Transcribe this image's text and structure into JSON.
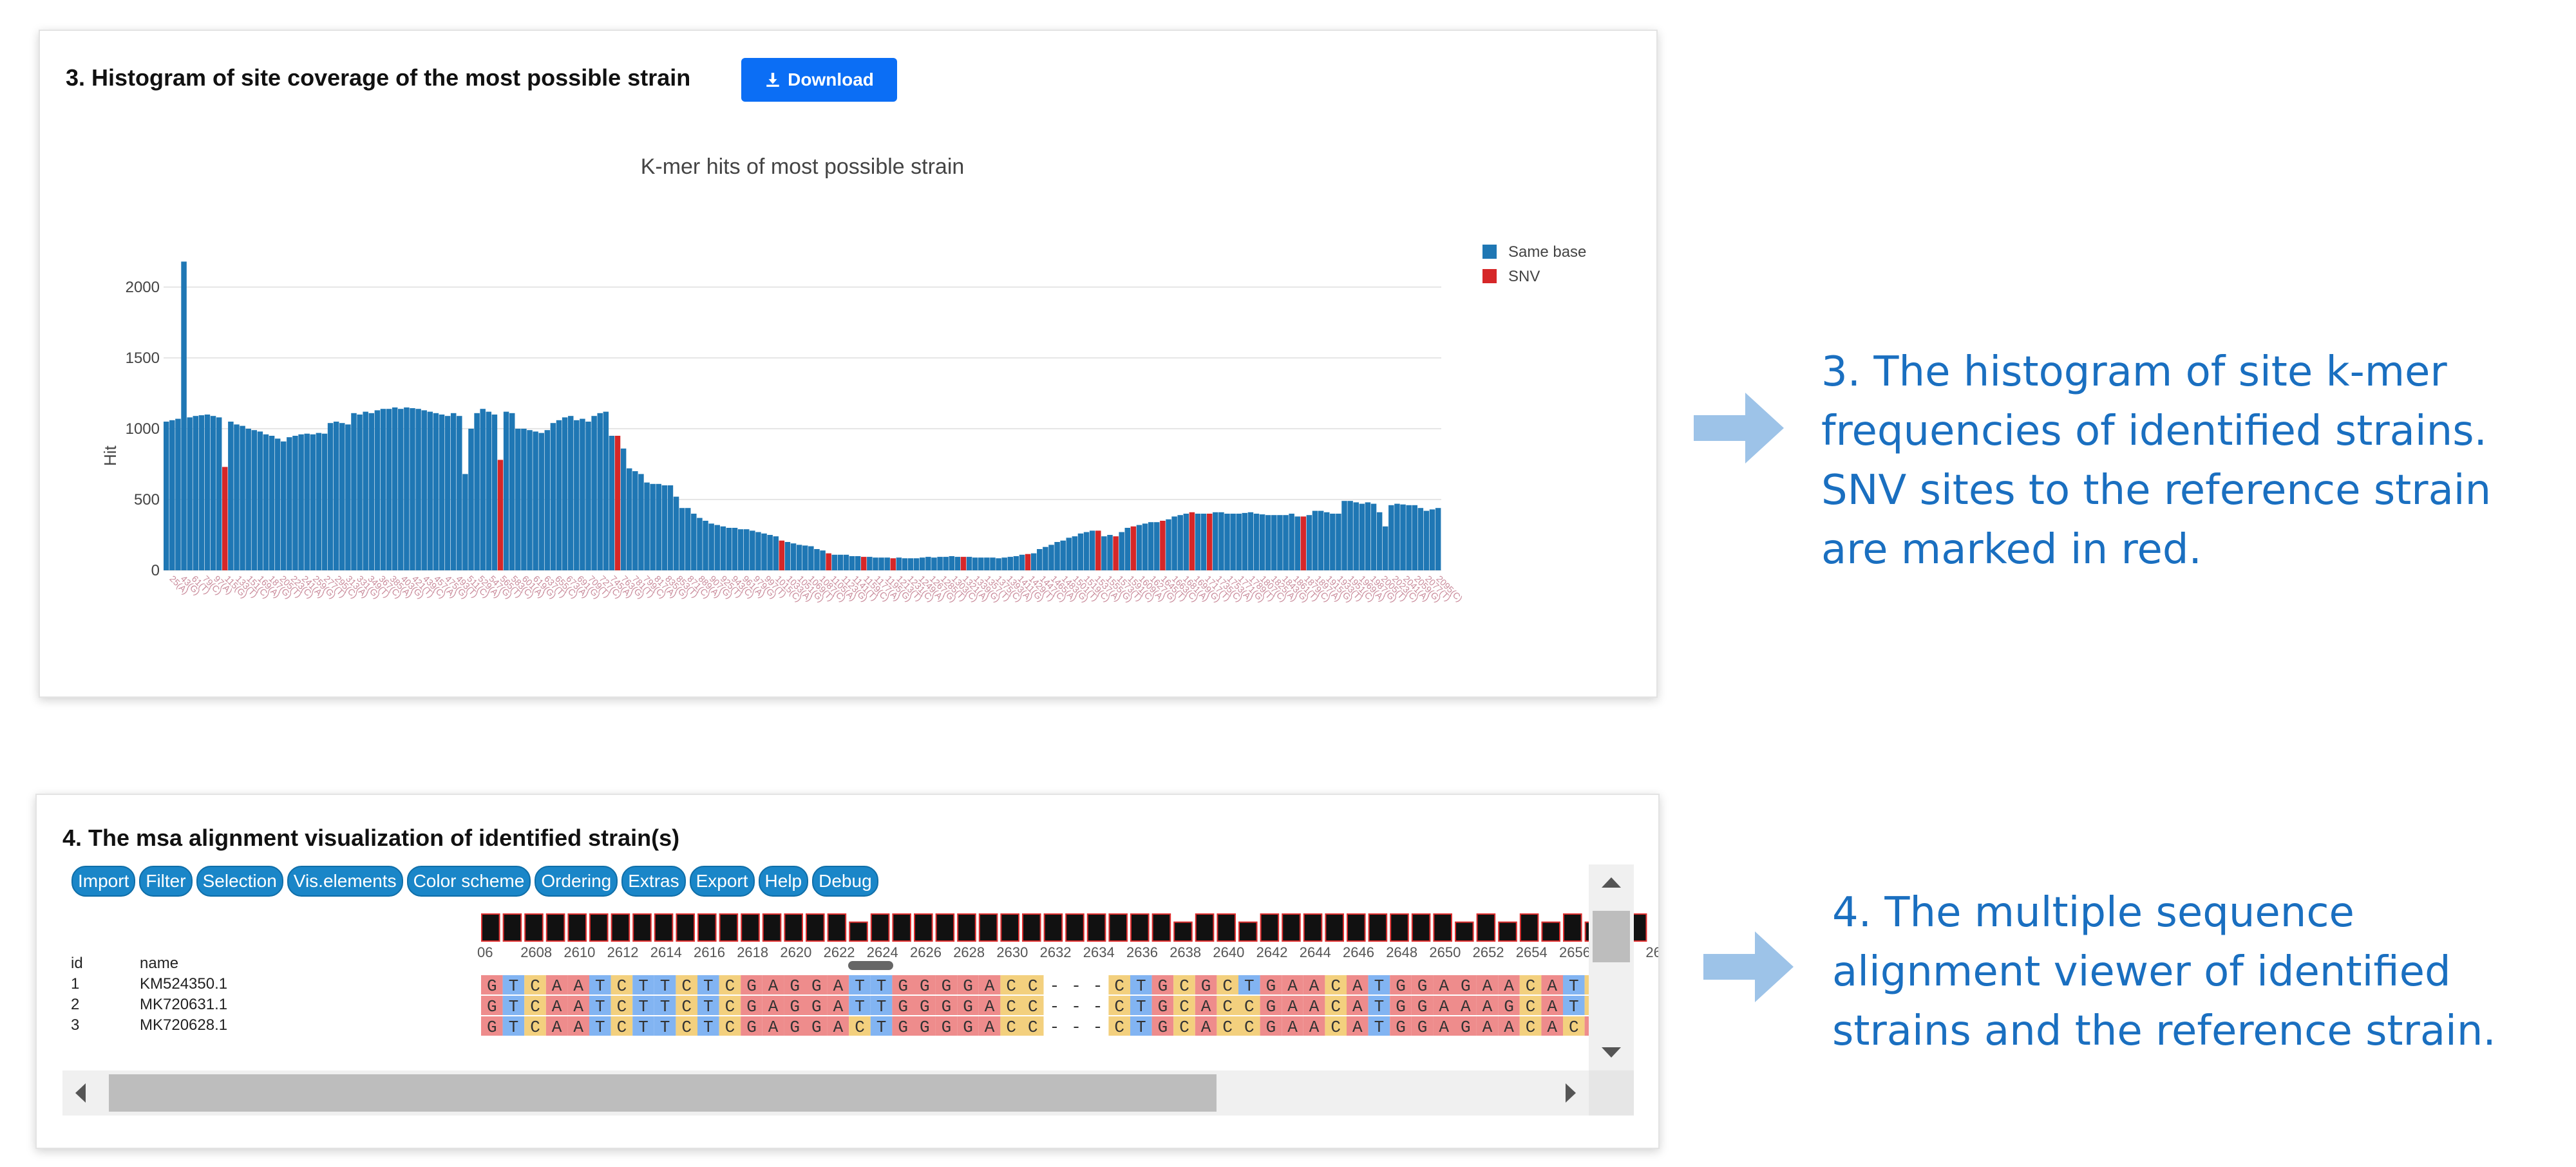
{
  "panel3": {
    "title": "3. Histogram of site coverage of the most possible strain",
    "download_label": "Download"
  },
  "chart_data": {
    "type": "bar",
    "title": "K-mer hits of most possible strain",
    "ylabel": "Hit",
    "xlabel": "",
    "ylim": [
      0,
      2200
    ],
    "yticks": [
      0,
      500,
      1000,
      1500,
      2000
    ],
    "grid": true,
    "legend_position": "top-right",
    "series": [
      {
        "name": "Same base",
        "color": "#1f77b4"
      },
      {
        "name": "SNV",
        "color": "#d62728"
      }
    ],
    "values": [
      1050,
      1060,
      1070,
      2180,
      1080,
      1090,
      1095,
      1100,
      1090,
      1080,
      730,
      1050,
      1030,
      1020,
      1000,
      990,
      980,
      960,
      950,
      930,
      910,
      940,
      950,
      960,
      965,
      960,
      970,
      965,
      1040,
      1050,
      1040,
      1030,
      1110,
      1100,
      1120,
      1110,
      1130,
      1140,
      1140,
      1150,
      1140,
      1150,
      1145,
      1140,
      1130,
      1120,
      1110,
      1100,
      1090,
      1110,
      1090,
      680,
      1000,
      1110,
      1140,
      1120,
      1100,
      780,
      1120,
      1110,
      1000,
      1000,
      990,
      980,
      970,
      990,
      1040,
      1060,
      1080,
      1090,
      1060,
      1070,
      1050,
      1090,
      1110,
      1120,
      950,
      950,
      860,
      720,
      700,
      680,
      620,
      610,
      610,
      600,
      600,
      520,
      440,
      440,
      400,
      370,
      350,
      330,
      320,
      310,
      300,
      300,
      290,
      290,
      280,
      270,
      260,
      250,
      240,
      210,
      200,
      190,
      180,
      175,
      170,
      150,
      140,
      120,
      110,
      110,
      110,
      100,
      100,
      95,
      95,
      90,
      90,
      90,
      85,
      90,
      85,
      85,
      85,
      90,
      95,
      90,
      95,
      95,
      100,
      95,
      95,
      95,
      90,
      90,
      90,
      90,
      85,
      90,
      95,
      100,
      110,
      115,
      120,
      150,
      165,
      180,
      200,
      210,
      230,
      240,
      260,
      270,
      280,
      280,
      240,
      250,
      240,
      270,
      300,
      310,
      320,
      330,
      340,
      340,
      350,
      360,
      380,
      390,
      400,
      410,
      400,
      400,
      400,
      410,
      410,
      400,
      400,
      400,
      405,
      410,
      400,
      395,
      390,
      390,
      390,
      390,
      400,
      380,
      380,
      390,
      420,
      420,
      410,
      400,
      400,
      490,
      490,
      480,
      470,
      480,
      470,
      410,
      310,
      460,
      470,
      465,
      460,
      460,
      440,
      420,
      430,
      440
    ],
    "snv_indices": [
      10,
      57,
      77,
      105,
      113,
      119,
      124,
      136,
      147,
      159,
      162,
      165,
      170,
      175,
      178,
      194,
      244
    ],
    "x_tick_labels": [
      "25(A)",
      "43(G)",
      "61(T)",
      "79(C)",
      "97(A)",
      "115(G)",
      "133(T)",
      "151(C)",
      "169(A)",
      "187(G)",
      "205(T)",
      "223(C)",
      "241(A)",
      "259(G)",
      "277(T)",
      "295(C)",
      "313(A)",
      "331(G)",
      "349(T)",
      "367(C)",
      "385(A)",
      "403(G)",
      "421(T)",
      "439(C)",
      "457(A)",
      "475(G)",
      "493(T)",
      "511(C)",
      "529(A)",
      "547(G)",
      "565(T)",
      "583(C)",
      "601(A)",
      "619(G)",
      "637(T)",
      "655(C)",
      "673(A)",
      "691(G)",
      "709(T)",
      "727(C)",
      "745(A)",
      "763(G)",
      "781(T)",
      "799(C)",
      "817(A)",
      "835(G)",
      "853(T)",
      "871(C)",
      "889(A)",
      "907(G)",
      "925(T)",
      "943(C)",
      "961(A)",
      "979(G)",
      "997(T)",
      "1015(C)",
      "1033(A)",
      "1051(G)",
      "1069(T)",
      "1087(C)",
      "1105(A)",
      "1123(G)",
      "1141(T)",
      "1159(C)",
      "1177(A)",
      "1195(G)",
      "1213(T)",
      "1231(C)",
      "1249(A)",
      "1267(G)",
      "1285(T)",
      "1303(C)",
      "1321(A)",
      "1339(G)",
      "1357(T)",
      "1375(C)",
      "1393(A)",
      "1411(G)",
      "1429(T)",
      "1447(C)",
      "1465(A)",
      "1483(G)",
      "1501(T)",
      "1519(C)",
      "1537(A)",
      "1555(G)",
      "1573(T)",
      "1591(C)",
      "1609(A)",
      "1627(G)",
      "1645(T)",
      "1663(C)",
      "1681(A)",
      "1699(G)",
      "1717(T)",
      "1735(C)",
      "1753(A)",
      "1771(G)",
      "1789(T)",
      "1807(C)",
      "1825(A)",
      "1843(G)",
      "1861(T)",
      "1879(C)",
      "1897(A)",
      "1915(G)",
      "1933(T)",
      "1951(C)",
      "1969(A)",
      "1987(G)",
      "2005(T)",
      "2023(C)",
      "2041(A)",
      "2059(G)",
      "2077(T)",
      "2095(C)"
    ]
  },
  "note3": {
    "lines": [
      "3. The histogram of site k-mer",
      "frequencies of identified strains.",
      "SNV sites to the reference strain",
      "are marked in red."
    ]
  },
  "panel4": {
    "title": "4. The msa alignment visualization of identified strain(s)",
    "menu": [
      "Import",
      "Filter",
      "Selection",
      "Vis.elements",
      "Color scheme",
      "Ordering",
      "Extras",
      "Export",
      "Help",
      "Debug"
    ],
    "columns": {
      "id": "id",
      "name": "name"
    },
    "position_labels": [
      "06",
      "2608",
      "2610",
      "2612",
      "2614",
      "2616",
      "2618",
      "2620",
      "2622",
      "2624",
      "2626",
      "2628",
      "2630",
      "2632",
      "2634",
      "2636",
      "2638",
      "2640",
      "2642",
      "2644",
      "2646",
      "2648",
      "2650",
      "2652",
      "2654",
      "2656",
      "2658",
      "26"
    ],
    "rows": [
      {
        "id": "1",
        "name": "KM524350.1",
        "seq": "GTCAATCTTCTCGAGGATTGGGGACC---CTGCGCTGAACATGGAGAACATCA"
      },
      {
        "id": "2",
        "name": "MK720631.1",
        "seq": "GTCAATCTTCTCGAGGATTGGGGACC---CTGCACCGAACATGGAAAGCATCA"
      },
      {
        "id": "3",
        "name": "MK720628.1",
        "seq": "GTCAATCTTCTCGAGGACTGGGGACC---CTGCACCGAACATGGAGAACACAA"
      }
    ],
    "conservation": [
      1,
      1,
      1,
      1,
      1,
      1,
      1,
      1,
      1,
      1,
      1,
      1,
      1,
      1,
      1,
      1,
      1,
      0.7,
      1,
      1,
      1,
      1,
      1,
      1,
      1,
      1,
      1,
      1,
      1,
      1,
      1,
      1,
      0.7,
      1,
      1,
      0.7,
      1,
      1,
      1,
      1,
      1,
      1,
      1,
      1,
      1,
      0.7,
      1,
      0.7,
      1,
      0.7,
      1,
      0.7,
      1,
      1
    ],
    "base_colors": {
      "A": "#ee8c8c",
      "C": "#f3d07e",
      "G": "#ee8c8c",
      "T": "#82b4f2",
      "-": "#ffffff"
    }
  },
  "note4": {
    "lines": [
      "4. The multiple sequence",
      "alignment viewer of identified",
      "strains and the reference strain."
    ]
  }
}
